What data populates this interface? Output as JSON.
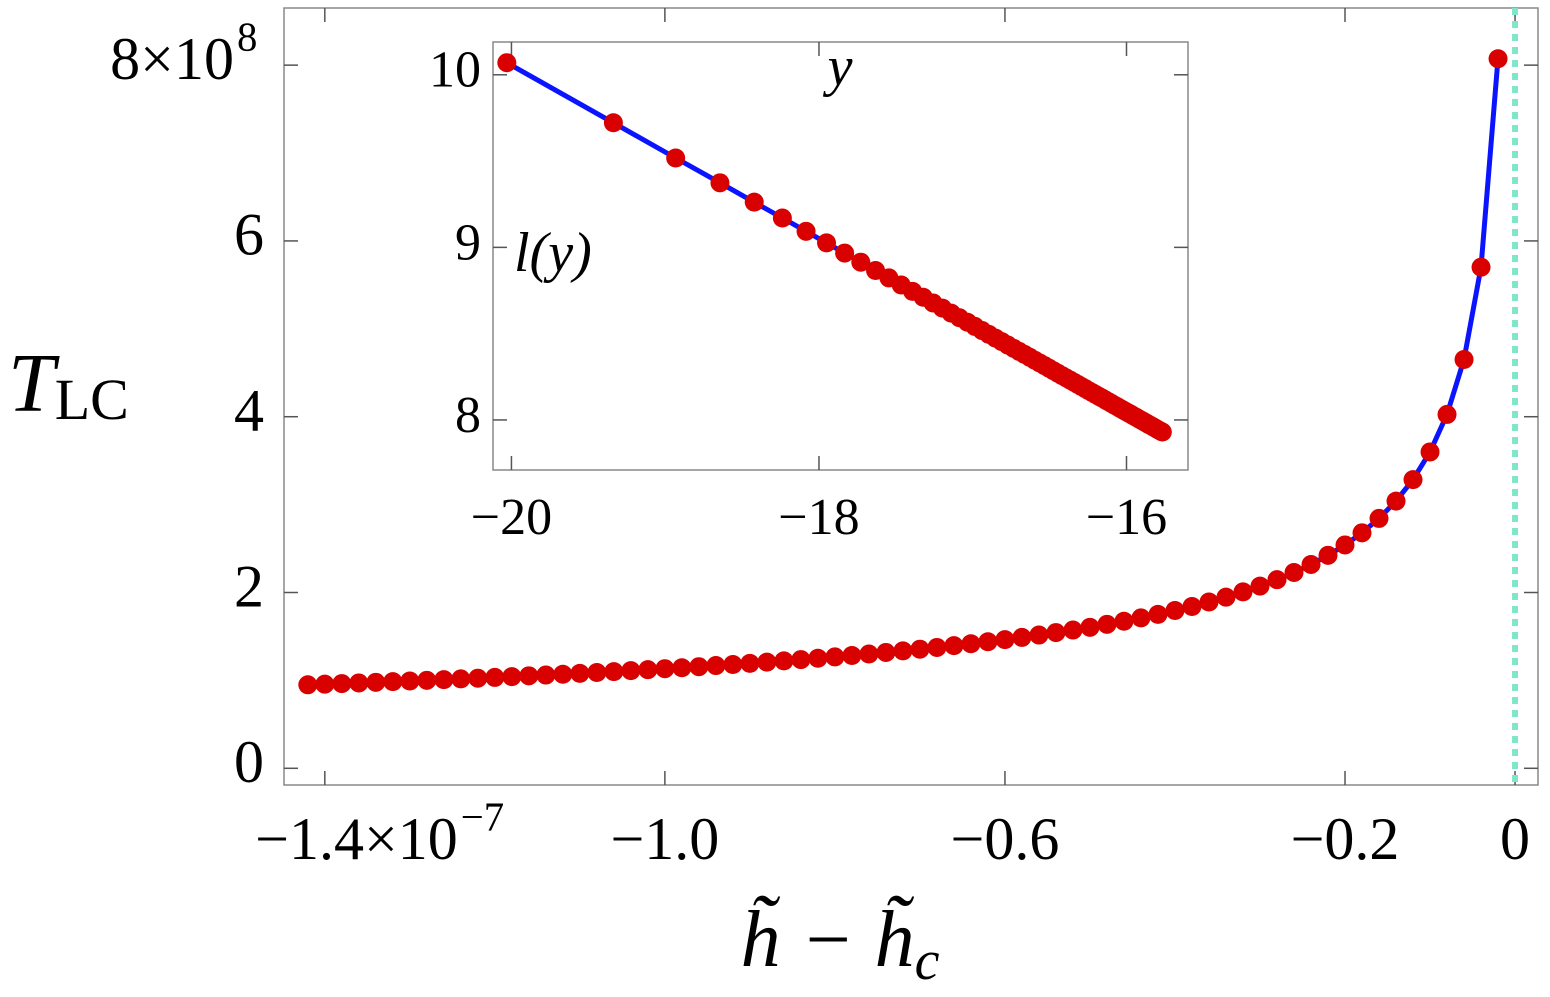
{
  "chart_data": [
    {
      "type": "line",
      "x_label": {
        "main": "h̃ − h̃",
        "sub": "c"
      },
      "y_label": {
        "main": "T",
        "sub": "LC"
      },
      "x": [
        -1.42e-07,
        -1.4e-07,
        -1.38e-07,
        -1.36e-07,
        -1.34e-07,
        -1.32e-07,
        -1.3e-07,
        -1.28e-07,
        -1.26e-07,
        -1.24e-07,
        -1.22e-07,
        -1.2e-07,
        -1.18e-07,
        -1.16e-07,
        -1.14e-07,
        -1.12e-07,
        -1.1e-07,
        -1.08e-07,
        -1.06e-07,
        -1.04e-07,
        -1.02e-07,
        -1e-07,
        -9.8e-08,
        -9.6e-08,
        -9.4e-08,
        -9.2e-08,
        -9e-08,
        -8.8e-08,
        -8.6e-08,
        -8.4e-08,
        -8.2e-08,
        -8e-08,
        -7.8e-08,
        -7.6e-08,
        -7.4e-08,
        -7.2e-08,
        -7e-08,
        -6.8e-08,
        -6.6e-08,
        -6.4e-08,
        -6.2e-08,
        -6e-08,
        -5.8e-08,
        -5.6e-08,
        -5.4e-08,
        -5.2e-08,
        -5e-08,
        -4.8e-08,
        -4.6e-08,
        -4.4e-08,
        -4.2e-08,
        -4e-08,
        -3.8e-08,
        -3.6e-08,
        -3.4e-08,
        -3.2e-08,
        -3e-08,
        -2.8e-08,
        -2.6e-08,
        -2.4e-08,
        -2.2e-08,
        -2e-08,
        -1.8e-08,
        -1.6e-08,
        -1.4e-08,
        -1.2e-08,
        -1e-08,
        -8e-09,
        -6e-09,
        -4e-09,
        -2e-09
      ],
      "series": [
        {
          "color": "#d90000",
          "line_color": "#0a14ff",
          "values": [
            95000000.0,
            95700000.0,
            96400000.0,
            97100000.0,
            97800000.0,
            98600000.0,
            99300000.0,
            100100000.0,
            100900000.0,
            101700000.0,
            102500000.0,
            103400000.0,
            104300000.0,
            105200000.0,
            106100000.0,
            107000000.0,
            108000000.0,
            109000000.0,
            110000000.0,
            111100000.0,
            112200000.0,
            113300000.0,
            114400000.0,
            115600000.0,
            116900000.0,
            118100000.0,
            119400000.0,
            120800000.0,
            122200000.0,
            123700000.0,
            125200000.0,
            126700000.0,
            128300000.0,
            130000000.0,
            131800000.0,
            133600000.0,
            135500000.0,
            137500000.0,
            139600000.0,
            141700000.0,
            144000000.0,
            146400000.0,
            148900000.0,
            151600000.0,
            154400000.0,
            157300000.0,
            160400000.0,
            163800000.0,
            167300000.0,
            171100000.0,
            175100000.0,
            179500000.0,
            184100000.0,
            189200000.0,
            194700000.0,
            200700000.0,
            207300000.0,
            214600000.0,
            222800000.0,
            231900000.0,
            242300000.0,
            254100000.0,
            267900000.0,
            284300000.0,
            304000000.0,
            328400000.0,
            359900000.0,
            402600000.0,
            465100000.0,
            570100000.0,
            807300000.0
          ]
        }
      ],
      "xlim": [
        -1.448e-07,
        2.7e-09
      ],
      "xticks": [
        {
          "value": -1.4e-07,
          "label": "−1.4×10"
        },
        {
          "value": -1e-07,
          "label": "−1.0"
        },
        {
          "value": -6e-08,
          "label": "−0.6"
        },
        {
          "value": -2e-08,
          "label": "−0.2"
        },
        0
      ],
      "x_tick_exponent": "−7",
      "ylim": [
        -19000000.0,
        865000000.0
      ],
      "yticks": [
        0,
        {
          "value": 200000000.0,
          "label": "2"
        },
        {
          "value": 400000000.0,
          "label": "4"
        },
        {
          "value": 600000000.0,
          "label": "6"
        },
        {
          "value": 800000000.0,
          "label": "8×10"
        }
      ],
      "y_tick_exponent": "8",
      "reference_line": {
        "x": 0,
        "color": "#7fe6c9"
      }
    },
    {
      "type": "line",
      "x_label": "y",
      "y_label": "l(y)",
      "x": [
        -15.767,
        -15.782,
        -15.796,
        -15.811,
        -15.825,
        -15.841,
        -15.856,
        -15.871,
        -15.887,
        -15.903,
        -15.919,
        -15.936,
        -15.953,
        -15.97,
        -15.987,
        -16.005,
        -16.023,
        -16.041,
        -16.06,
        -16.079,
        -16.098,
        -16.118,
        -16.138,
        -16.159,
        -16.18,
        -16.202,
        -16.224,
        -16.246,
        -16.269,
        -16.293,
        -16.317,
        -16.341,
        -16.367,
        -16.393,
        -16.419,
        -16.447,
        -16.475,
        -16.504,
        -16.534,
        -16.564,
        -16.596,
        -16.629,
        -16.663,
        -16.698,
        -16.734,
        -16.772,
        -16.811,
        -16.852,
        -16.895,
        -16.939,
        -16.986,
        -17.034,
        -17.086,
        -17.14,
        -17.197,
        -17.258,
        -17.322,
        -17.391,
        -17.465,
        -17.545,
        -17.632,
        -17.728,
        -17.833,
        -17.951,
        -18.084,
        -18.238,
        -18.421,
        -18.644,
        -18.932,
        -19.337,
        -20.03
      ],
      "series": [
        {
          "color": "#d90000",
          "line_color": "#0a14ff",
          "values": [
            7.93,
            7.937,
            7.944,
            7.952,
            7.959,
            7.967,
            7.974,
            7.982,
            7.99,
            7.998,
            8.006,
            8.015,
            8.023,
            8.032,
            8.04,
            8.049,
            8.058,
            8.067,
            8.077,
            8.086,
            8.096,
            8.106,
            8.116,
            8.127,
            8.137,
            8.148,
            8.159,
            8.17,
            8.182,
            8.194,
            8.206,
            8.218,
            8.231,
            8.244,
            8.257,
            8.271,
            8.285,
            8.3,
            8.315,
            8.33,
            8.346,
            8.363,
            8.38,
            8.397,
            8.415,
            8.434,
            8.454,
            8.474,
            8.496,
            8.518,
            8.542,
            8.566,
            8.592,
            8.619,
            8.648,
            8.678,
            8.711,
            8.745,
            8.782,
            8.823,
            8.866,
            8.914,
            8.967,
            9.026,
            9.093,
            9.17,
            9.262,
            9.374,
            9.518,
            9.722,
            10.07
          ]
        }
      ],
      "xlim": [
        -20.12,
        -15.6
      ],
      "xticks": [
        {
          "value": -20,
          "label": "−20"
        },
        {
          "value": -18,
          "label": "−18"
        },
        {
          "value": -16,
          "label": "−16"
        }
      ],
      "ylim": [
        7.71,
        10.19
      ],
      "yticks": [
        8,
        9,
        10
      ]
    }
  ]
}
